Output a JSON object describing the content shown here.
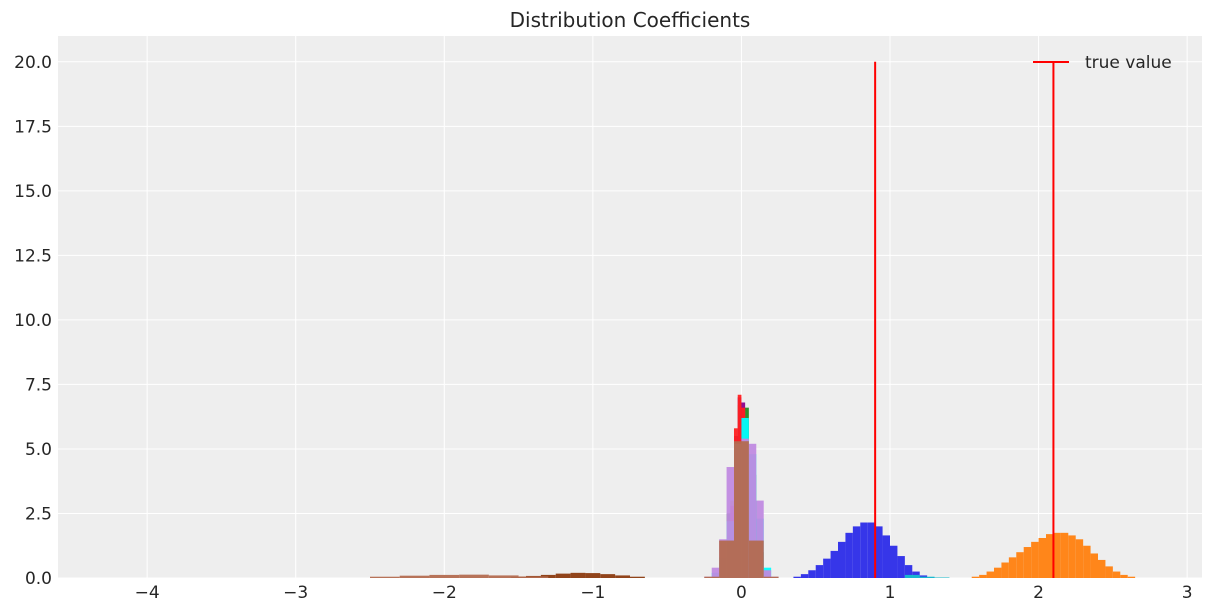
{
  "chart_data": {
    "type": "histogram",
    "title": "Distribution Coefficients",
    "xlabel": "",
    "ylabel": "",
    "xlim": [
      -4.6,
      3.1
    ],
    "ylim": [
      0,
      21
    ],
    "xticks": [
      -4,
      -3,
      -2,
      -1,
      0,
      1,
      2,
      3
    ],
    "xtick_labels": [
      "−4",
      "−3",
      "−2",
      "−1",
      "0",
      "1",
      "2",
      "3"
    ],
    "yticks": [
      0,
      2.5,
      5,
      7.5,
      10,
      12.5,
      15,
      17.5,
      20
    ],
    "ytick_labels": [
      "0.0",
      "2.5",
      "5.0",
      "7.5",
      "10.0",
      "12.5",
      "15.0",
      "17.5",
      "20.0"
    ],
    "grid": true,
    "background": "#eeeeee",
    "legend": {
      "entries": [
        "true value"
      ],
      "placement": "top-right",
      "color": "#ff0000"
    },
    "true_value_lines": [
      {
        "x": 0.9,
        "y": 20
      },
      {
        "x": 2.1,
        "y": 20
      }
    ],
    "histograms": [
      {
        "color": "#8b3a0f",
        "edges": [
          -1.55,
          -1.45,
          -1.35,
          -1.25,
          -1.15,
          -1.05,
          -0.95,
          -0.85,
          -0.75,
          -0.65
        ],
        "values": [
          0.04,
          0.08,
          0.12,
          0.17,
          0.2,
          0.19,
          0.15,
          0.1,
          0.05
        ]
      },
      {
        "color": "#b36b50",
        "edges": [
          -2.5,
          -2.3,
          -2.1,
          -1.9,
          -1.7,
          -1.5,
          -1.3
        ],
        "values": [
          0.05,
          0.09,
          0.12,
          0.13,
          0.1,
          0.06
        ]
      },
      {
        "color": "#2b2be8",
        "edges": [
          0.35,
          0.4,
          0.45,
          0.5,
          0.55,
          0.6,
          0.65,
          0.7,
          0.75,
          0.8,
          0.85,
          0.9,
          0.95,
          1.0,
          1.05,
          1.1,
          1.15,
          1.2,
          1.25,
          1.3
        ],
        "values": [
          0.05,
          0.15,
          0.3,
          0.5,
          0.75,
          1.05,
          1.4,
          1.75,
          2.0,
          2.15,
          2.15,
          2.0,
          1.65,
          1.25,
          0.85,
          0.5,
          0.25,
          0.1,
          0.03
        ]
      },
      {
        "color": "#17becf",
        "edges": [
          1.1,
          1.2,
          1.3,
          1.4
        ],
        "values": [
          0.12,
          0.05,
          0.02
        ]
      },
      {
        "color": "#ff7f0e",
        "edges": [
          1.55,
          1.6,
          1.65,
          1.7,
          1.75,
          1.8,
          1.85,
          1.9,
          1.95,
          2.0,
          2.05,
          2.1,
          2.15,
          2.2,
          2.25,
          2.3,
          2.35,
          2.4,
          2.45,
          2.5,
          2.55,
          2.6,
          2.65
        ],
        "values": [
          0.05,
          0.12,
          0.25,
          0.4,
          0.6,
          0.8,
          1.0,
          1.2,
          1.4,
          1.55,
          1.7,
          1.75,
          1.75,
          1.65,
          1.5,
          1.25,
          0.95,
          0.7,
          0.45,
          0.25,
          0.12,
          0.05
        ]
      },
      {
        "color": "#228b22",
        "edges": [
          -0.15,
          -0.1,
          -0.05,
          0.0,
          0.05,
          0.1,
          0.15
        ],
        "values": [
          0.6,
          2.5,
          5.5,
          6.6,
          4.0,
          1.0
        ]
      },
      {
        "color": "#d4d400",
        "edges": [
          -0.1,
          -0.075,
          -0.05,
          -0.025,
          0.0,
          0.025,
          0.05,
          0.075,
          0.1
        ],
        "values": [
          1.5,
          3.0,
          5.0,
          6.7,
          6.5,
          4.5,
          2.5,
          0.8
        ]
      },
      {
        "color": "#8b008b",
        "edges": [
          -0.1,
          -0.075,
          -0.05,
          -0.025,
          0.0,
          0.025,
          0.05,
          0.075,
          0.1
        ],
        "values": [
          1.0,
          2.5,
          5.5,
          7.0,
          6.8,
          4.8,
          2.0,
          0.6
        ]
      },
      {
        "color": "#ff2020",
        "edges": [
          -0.1,
          -0.075,
          -0.05,
          -0.025,
          0.0,
          0.025,
          0.05,
          0.075,
          0.1
        ],
        "values": [
          1.2,
          2.8,
          5.8,
          7.1,
          6.6,
          4.4,
          2.2,
          0.7
        ]
      },
      {
        "color": "#00ffff",
        "edges": [
          -0.2,
          -0.15,
          -0.1,
          -0.05,
          0.0,
          0.05,
          0.1,
          0.15,
          0.2
        ],
        "values": [
          0.2,
          0.8,
          2.2,
          5.0,
          6.2,
          4.8,
          2.3,
          0.4
        ]
      },
      {
        "color": "#c08ae0",
        "edges": [
          -0.25,
          -0.2,
          -0.15,
          -0.1,
          -0.05,
          0.0,
          0.05,
          0.1,
          0.15,
          0.2,
          0.25
        ],
        "values": [
          0.05,
          0.4,
          1.5,
          4.3,
          5.2,
          5.4,
          5.2,
          3.0,
          0.3,
          0.05
        ]
      },
      {
        "color": "#b36b50",
        "edges": [
          -0.25,
          -0.15,
          -0.05,
          0.05,
          0.15,
          0.25
        ],
        "values": [
          0.05,
          1.45,
          5.3,
          1.45,
          0.05
        ]
      }
    ]
  }
}
